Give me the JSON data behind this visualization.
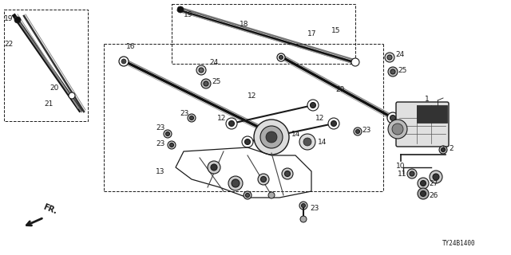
{
  "bg_color": "#ffffff",
  "diagram_code": "TY24B1400",
  "line_color": "#1a1a1a",
  "gray1": "#888888",
  "gray2": "#555555",
  "gray3": "#cccccc",
  "gray4": "#333333",
  "font_size": 6.5
}
